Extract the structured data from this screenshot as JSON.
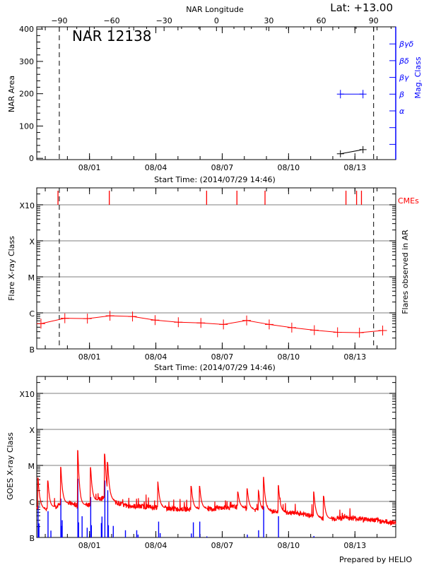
{
  "header": {
    "lat_label": "Lat: +13.00",
    "region_label": "NAR 12138",
    "credit": "Prepared by HELIO"
  },
  "colors": {
    "axis": "#000000",
    "grid": "#999999",
    "flare": "#ff0000",
    "goes_events": "#0000ff",
    "mag_class": "#0000ff",
    "cme": "#ff0000"
  },
  "chart_data": [
    {
      "type": "line",
      "title": "NAR 12138",
      "xlabel": "Start Time: (2014/07/29 14:46)",
      "x_units": "days since start",
      "xlim": [
        0,
        16.23
      ],
      "xticks": [
        {
          "t": 2.385,
          "label": "08/01"
        },
        {
          "t": 5.385,
          "label": "08/04"
        },
        {
          "t": 8.385,
          "label": "08/07"
        },
        {
          "t": 11.385,
          "label": "08/10"
        },
        {
          "t": 14.385,
          "label": "08/13"
        }
      ],
      "top_axis": {
        "label": "NAR Longitude",
        "ticks": [
          -90,
          -60,
          -30,
          0,
          30,
          60,
          90
        ],
        "lon_minus90_at_t": 1.02,
        "lon_90_at_t": 15.23
      },
      "ylabel": "NAR Area",
      "ylim": [
        -4,
        407
      ],
      "yticks": [
        0,
        100,
        200,
        300,
        400
      ],
      "limb_lines_t": [
        1.02,
        15.23
      ],
      "area_series": {
        "name": "NAR Area",
        "t": [
          13.73,
          14.75
        ],
        "values": [
          14,
          27
        ]
      },
      "mag_axis": {
        "label": "Mag. Class",
        "classes": [
          "α",
          "β",
          "βγ",
          "βδ",
          "βγδ"
        ]
      },
      "mag_series": {
        "name": "Mag. Class",
        "t": [
          13.73,
          14.75
        ],
        "values": [
          "β",
          "β"
        ]
      }
    },
    {
      "type": "line",
      "xlabel": "Start Time: (2014/07/29 14:46)",
      "ylabel": "Flare X-ray Class",
      "right_label": "Flares observed in AR",
      "cme_label": "CMEs",
      "xlim": [
        0,
        16.23
      ],
      "ylim_log10_flux": [
        -7,
        -2.53
      ],
      "class_levels": [
        {
          "label": "B",
          "log": -7
        },
        {
          "label": "C",
          "log": -6
        },
        {
          "label": "M",
          "log": -5
        },
        {
          "label": "X",
          "log": -4
        },
        {
          "label": "X10",
          "log": -3
        }
      ],
      "limb_lines_t": [
        1.02,
        15.23
      ],
      "flare_series": {
        "t": [
          0.19,
          1.27,
          2.29,
          3.31,
          4.33,
          5.35,
          6.4,
          7.42,
          8.44,
          9.49,
          10.51,
          11.53,
          12.55,
          13.6,
          14.59,
          15.64
        ],
        "log10_flux": [
          -6.3,
          -6.15,
          -6.16,
          -6.08,
          -6.1,
          -6.2,
          -6.26,
          -6.28,
          -6.32,
          -6.21,
          -6.32,
          -6.41,
          -6.48,
          -6.54,
          -6.55,
          -6.49
        ]
      },
      "cme_times": [
        0.96,
        3.28,
        7.68,
        9.05,
        10.32,
        13.98,
        14.46,
        14.68
      ]
    },
    {
      "type": "line",
      "ylabel": "GOES X-ray Class",
      "xlim": [
        0,
        16.23
      ],
      "ylim_log10_flux": [
        -7,
        -2.53
      ],
      "class_levels": [
        {
          "label": "B",
          "log": -7
        },
        {
          "label": "C",
          "log": -6
        },
        {
          "label": "M",
          "log": -5
        },
        {
          "label": "X",
          "log": -4
        },
        {
          "label": "X10",
          "log": -3
        }
      ],
      "goes_baseline": {
        "t": [
          0,
          0.5,
          1,
          1.5,
          2,
          2.5,
          3,
          3.5,
          4,
          5,
          6,
          7,
          8,
          9,
          10,
          11,
          12,
          13,
          14,
          15,
          16.23
        ],
        "log10_flux": [
          -6.15,
          -6.25,
          -6.1,
          -6.05,
          -6.15,
          -6.05,
          -5.9,
          -6.0,
          -6.12,
          -6.15,
          -6.2,
          -6.22,
          -6.2,
          -6.15,
          -6.25,
          -6.3,
          -6.35,
          -6.5,
          -6.45,
          -6.5,
          -6.6
        ]
      },
      "goes_peaks": {
        "t": [
          0.06,
          0.51,
          1.09,
          1.86,
          2.44,
          3.08,
          3.21,
          5.48,
          6.99,
          7.37,
          9.1,
          9.52,
          10.03,
          10.26,
          10.93,
          12.53,
          12.98
        ],
        "log10_flux": [
          -5.35,
          -5.43,
          -5.04,
          -4.59,
          -5.06,
          -4.69,
          -4.92,
          -5.45,
          -5.58,
          -5.58,
          -5.74,
          -5.65,
          -5.7,
          -5.33,
          -5.55,
          -5.74,
          -5.86
        ]
      },
      "flare_events": {
        "t": [
          0.06,
          0.1,
          0.51,
          0.64,
          1.09,
          1.12,
          1.15,
          1.86,
          1.89,
          2.05,
          2.28,
          2.44,
          2.47,
          2.92,
          2.95,
          3.08,
          3.21,
          3.24,
          3.46,
          4.01,
          4.52,
          4.58,
          5.51,
          5.58,
          6.99,
          7.08,
          7.37,
          7.69,
          9.52,
          10.03,
          10.26,
          10.93,
          12.53
        ],
        "log10_flux": [
          -6.12,
          -6.61,
          -6.27,
          -6.81,
          -5.92,
          -6.68,
          -6.52,
          -5.37,
          -6.58,
          -6.41,
          -6.73,
          -5.88,
          -6.66,
          -6.6,
          -6.42,
          -5.42,
          -5.69,
          -6.66,
          -6.68,
          -6.8,
          -6.8,
          -6.92,
          -6.56,
          -6.88,
          -6.89,
          -6.58,
          -6.56,
          -6.97,
          -6.92,
          -6.8,
          -6.14,
          -6.41,
          -6.96
        ]
      }
    }
  ]
}
